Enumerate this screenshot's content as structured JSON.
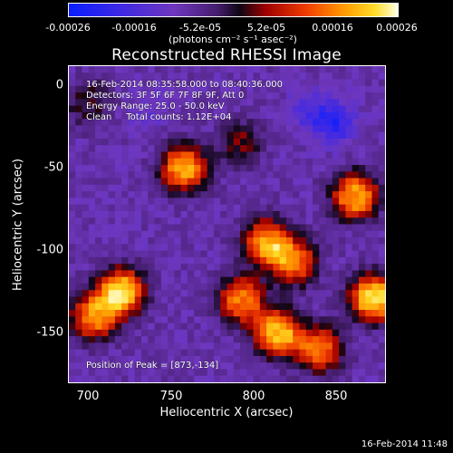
{
  "chart_data": {
    "type": "heatmap",
    "title": "Reconstructed RHESSI Image",
    "xlabel": "Heliocentric X (arcsec)",
    "ylabel": "Heliocentric Y (arcsec)",
    "xlim": [
      688,
      880
    ],
    "ylim": [
      -185,
      7
    ],
    "xticks": [
      700,
      750,
      800,
      850
    ],
    "yticks": [
      0,
      -50,
      -100,
      -150
    ],
    "colorbar": {
      "ticks": [
        "-0.00026",
        "-0.00016",
        "-5.2e-05",
        "5.2e-05",
        "0.00016",
        "0.00026"
      ],
      "label": "(photons cm⁻² s⁻¹ asec⁻²)",
      "range": [
        -0.00026,
        0.00026
      ]
    },
    "annotations": {
      "time": "16-Feb-2014 08:35:58.000 to 08:40:36.000",
      "detectors": "Detectors: 3F 5F 6F 7F 8F 9F, Att 0",
      "energy": "Energy Range: 25.0 - 50.0 keV",
      "clean": "Clean     Total counts: 1.12E+04",
      "peak": "Position of Peak = [873,-134]"
    },
    "sources": [
      {
        "x": 758,
        "y": -55,
        "strength": 0.85
      },
      {
        "x": 720,
        "y": -130,
        "strength": 0.95
      },
      {
        "x": 703,
        "y": -145,
        "strength": 0.75
      },
      {
        "x": 808,
        "y": -100,
        "strength": 0.8
      },
      {
        "x": 825,
        "y": -112,
        "strength": 0.7
      },
      {
        "x": 862,
        "y": -72,
        "strength": 0.85
      },
      {
        "x": 873,
        "y": -134,
        "strength": 1.0
      },
      {
        "x": 815,
        "y": -155,
        "strength": 0.9
      },
      {
        "x": 840,
        "y": -165,
        "strength": 0.7
      },
      {
        "x": 793,
        "y": -135,
        "strength": 0.75
      },
      {
        "x": 792,
        "y": -40,
        "strength": 0.35
      },
      {
        "x": 700,
        "y": -15,
        "strength": 0.3
      }
    ],
    "negative_regions": [
      {
        "x": 850,
        "y": -28,
        "strength": 0.8
      },
      {
        "x": 835,
        "y": -20,
        "strength": 0.5
      },
      {
        "x": 735,
        "y": -20,
        "strength": 0.25
      }
    ]
  },
  "timestamp": "16-Feb-2014 11:48"
}
